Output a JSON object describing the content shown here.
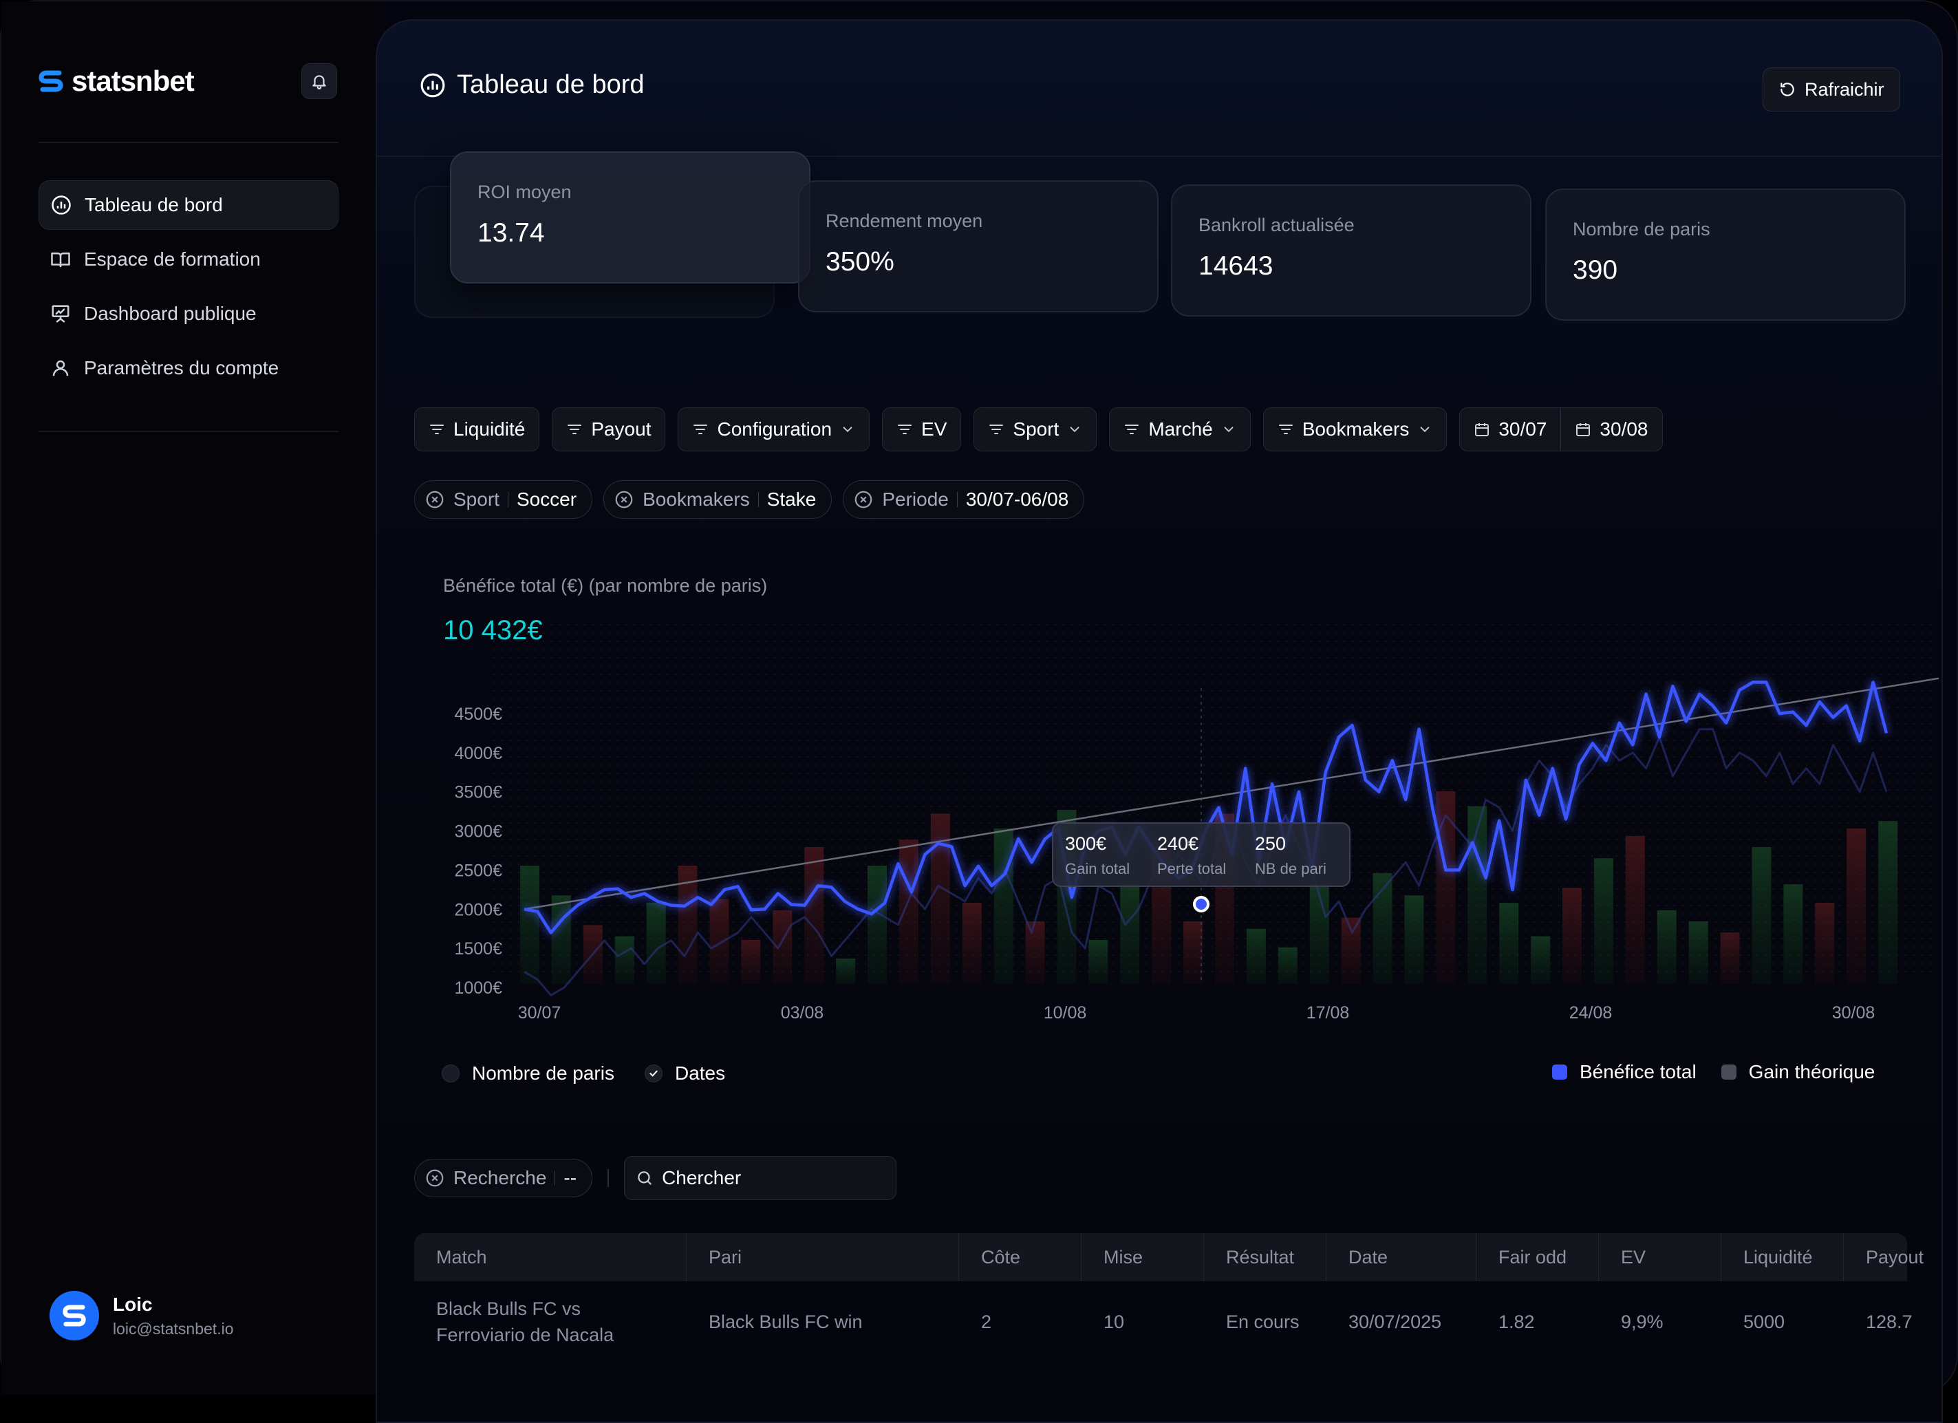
{
  "app": {
    "brand": "statsnbet"
  },
  "sidebar": {
    "items": [
      {
        "label": "Tableau de bord",
        "icon": "chart-icon",
        "active": true
      },
      {
        "label": "Espace de formation",
        "icon": "book-icon"
      },
      {
        "label": "Dashboard publique",
        "icon": "presentation-icon"
      },
      {
        "label": "Paramètres du compte",
        "icon": "user-icon"
      }
    ],
    "user": {
      "name": "Loic",
      "email": "loic@statsnbet.io"
    }
  },
  "header": {
    "title": "Tableau de bord",
    "refresh_label": "Rafraichir"
  },
  "stats": [
    {
      "label": "ROI moyen",
      "value": "13.74"
    },
    {
      "label": "Rendement moyen",
      "value": "350%"
    },
    {
      "label": "Bankroll actualisée",
      "value": "14643"
    },
    {
      "label": "Nombre de paris",
      "value": "390"
    }
  ],
  "filters": [
    {
      "label": "Liquidité",
      "dropdown": false
    },
    {
      "label": "Payout",
      "dropdown": false
    },
    {
      "label": "Configuration",
      "dropdown": true
    },
    {
      "label": "EV",
      "dropdown": false
    },
    {
      "label": "Sport",
      "dropdown": true
    },
    {
      "label": "Marché",
      "dropdown": true
    },
    {
      "label": "Bookmakers",
      "dropdown": true
    }
  ],
  "date_range": {
    "start": "30/07",
    "end": "30/08"
  },
  "active_tags": [
    {
      "key": "Sport",
      "value": "Soccer"
    },
    {
      "key": "Bookmakers",
      "value": "Stake"
    },
    {
      "key": "Periode",
      "value": "30/07-06/08"
    }
  ],
  "chart": {
    "title": "Bénéfice total (€) (par nombre de paris)",
    "total": "10 432€",
    "tooltip": [
      {
        "value": "300€",
        "label": "Gain total"
      },
      {
        "value": "240€",
        "label": "Perte total"
      },
      {
        "value": "250",
        "label": "NB de pari"
      }
    ],
    "legend_left": [
      {
        "label": "Nombre de paris",
        "checked": false
      },
      {
        "label": "Dates",
        "checked": true
      }
    ],
    "legend_right": [
      {
        "label": "Bénéfice total",
        "color": "#3b56ff"
      },
      {
        "label": "Gain théorique",
        "color": "#4a4d57"
      }
    ]
  },
  "chart_data": {
    "type": "line",
    "y_tick_labels": [
      "4500€",
      "4000€",
      "3500€",
      "3000€",
      "2500€",
      "2000€",
      "1500€",
      "1000€"
    ],
    "x_tick_labels": [
      "30/07",
      "03/08",
      "10/08",
      "17/08",
      "24/08",
      "30/08"
    ],
    "ylim": [
      800,
      5000
    ],
    "grid": true,
    "series": [
      {
        "name": "Bénéfice total",
        "color": "#3b56ff",
        "values": [
          2000,
          1970,
          1700,
          1900,
          2050,
          2150,
          2250,
          2260,
          2150,
          2200,
          2100,
          2050,
          2040,
          2150,
          2060,
          2250,
          2290,
          1990,
          2000,
          2200,
          2060,
          2050,
          2300,
          2280,
          2100,
          2000,
          1940,
          2080,
          2580,
          2220,
          2700,
          2840,
          2800,
          2300,
          2550,
          2300,
          2450,
          2900,
          2600,
          2900,
          3030,
          2150,
          2800,
          3000,
          3050,
          2700,
          3050,
          2800,
          2550,
          2400,
          2500,
          3000,
          3300,
          2700,
          3800,
          2600,
          3600,
          2800,
          3500,
          2500,
          3750,
          4200,
          4350,
          3650,
          3500,
          3900,
          3400,
          4300,
          3300,
          2500,
          2500,
          2850,
          2400,
          3130,
          2250,
          3650,
          3200,
          3800,
          3150,
          3850,
          4120,
          3900,
          4380,
          4100,
          4750,
          4200,
          4850,
          4400,
          4750,
          4600,
          4380,
          4800,
          4900,
          4900,
          4500,
          4520,
          4350,
          4650,
          4450,
          4600,
          4150,
          4900,
          4250
        ]
      },
      {
        "name": "Gain théorique",
        "color": "#303a8a",
        "values": [
          1200,
          1100,
          900,
          1000,
          1200,
          1400,
          1600,
          1400,
          1500,
          1300,
          1500,
          1600,
          1400,
          1700,
          1500,
          1600,
          1700,
          1900,
          1700,
          1500,
          1800,
          1900,
          1700,
          1400,
          1600,
          1800,
          2000,
          1900,
          1800,
          2200,
          2000,
          2300,
          2200,
          2100,
          2400,
          2200,
          2500,
          2100,
          1700,
          2300,
          2400,
          1700,
          1500,
          2300,
          2200,
          1800,
          2000,
          2400,
          2500,
          2700,
          2500,
          2300,
          2900,
          3100,
          2600,
          2300,
          2800,
          3200,
          2800,
          2500,
          1900,
          2100,
          1700,
          2000,
          2200,
          2400,
          2600,
          2300,
          2800,
          3200,
          3000,
          2800,
          3400,
          3300,
          3000,
          3600,
          3900,
          3700,
          3300,
          3600,
          3800,
          4100,
          3900,
          4000,
          3800,
          4200,
          3700,
          4000,
          4300,
          4300,
          3800,
          4000,
          3900,
          3700,
          4000,
          3600,
          3800,
          3600,
          4100,
          3800,
          3500,
          4000,
          3500
        ]
      },
      {
        "name": "Tendance",
        "color": "#6a6d78",
        "values": [
          2000,
          4950
        ]
      }
    ]
  },
  "search": {
    "tag_key": "Recherche",
    "tag_value": "--",
    "placeholder": "Chercher"
  },
  "table": {
    "columns": [
      "Match",
      "Pari",
      "Côte",
      "Mise",
      "Résultat",
      "Date",
      "Fair odd",
      "EV",
      "Liquidité",
      "Payout"
    ],
    "rows": [
      {
        "match": [
          "Black Bulls FC vs",
          "Ferroviario de Nacala"
        ],
        "pari": "Black Bulls FC win",
        "cote": "2",
        "mise": "10",
        "resultat": "En cours",
        "date": "30/07/2025",
        "fair_odd": "1.82",
        "ev": "9,9%",
        "liquidite": "5000",
        "payout": "128.7"
      }
    ]
  }
}
